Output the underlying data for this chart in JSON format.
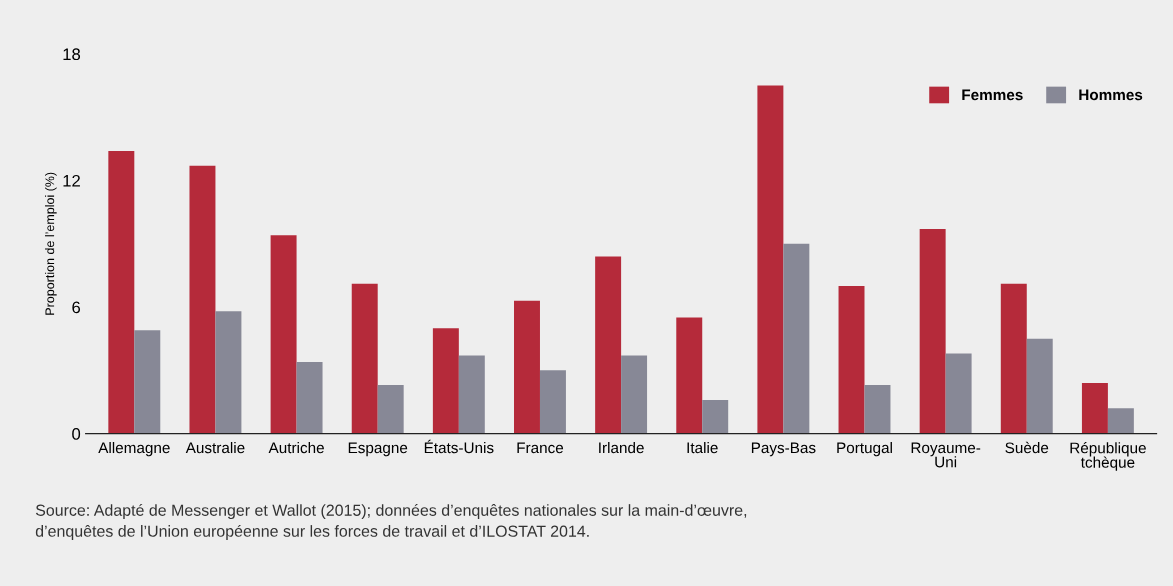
{
  "chart_data": {
    "type": "bar",
    "ylabel": "Proportion de l’emploi (%)",
    "categories": [
      "Allemagne",
      "Australie",
      "Autriche",
      "Espagne",
      "États-Unis",
      "France",
      "Irlande",
      "Italie",
      "Pays-Bas",
      "Portugal",
      "Royaume-\nUni",
      "Suède",
      "République\ntchèque"
    ],
    "series": [
      {
        "name": "Femmes",
        "color": "#b52a3a",
        "values": [
          13.4,
          12.7,
          9.4,
          7.1,
          5.0,
          6.3,
          8.4,
          5.5,
          16.5,
          7.0,
          9.7,
          7.1,
          2.4
        ]
      },
      {
        "name": "Hommes",
        "color": "#878896",
        "values": [
          4.9,
          5.8,
          3.4,
          2.3,
          3.7,
          3.0,
          3.7,
          1.6,
          9.0,
          2.3,
          3.8,
          4.5,
          1.2
        ]
      }
    ],
    "ylim": [
      0,
      18
    ],
    "yticks": [
      0,
      6,
      12,
      18
    ],
    "grid": false,
    "legend": "top right",
    "annotations": [
      "Source: Adapté de Messenger et Wallot (2015); données d’enquêtes nationales sur la main-d’œuvre,\nd’enquêtes de l’Union européenne sur les forces de travail et d’ILOSTAT 2014."
    ]
  }
}
